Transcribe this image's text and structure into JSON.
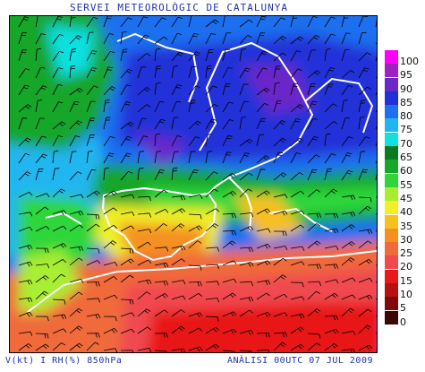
{
  "header": {
    "title": "SERVEI METEOROLÒGIC DE CATALUNYA"
  },
  "footer": {
    "left": "V(kt) I RH(%) 850hPa",
    "right": "ANÀLISI 00UTC 07 JUL 2009"
  },
  "legend": [
    {
      "label": "100",
      "color": "#ff00ff"
    },
    {
      "label": "95",
      "color": "#a020c0"
    },
    {
      "label": "90",
      "color": "#6a28c8"
    },
    {
      "label": "85",
      "color": "#2230d8"
    },
    {
      "label": "80",
      "color": "#1f6ff0"
    },
    {
      "label": "75",
      "color": "#20b6f0"
    },
    {
      "label": "70",
      "color": "#10e0e0"
    },
    {
      "label": "65",
      "color": "#0a7a20"
    },
    {
      "label": "60",
      "color": "#16a62a"
    },
    {
      "label": "55",
      "color": "#2ed63a"
    },
    {
      "label": "45",
      "color": "#a8ee30"
    },
    {
      "label": "40",
      "color": "#f0f028"
    },
    {
      "label": "35",
      "color": "#f5c020"
    },
    {
      "label": "30",
      "color": "#f59020"
    },
    {
      "label": "25",
      "color": "#f06a3a"
    },
    {
      "label": "20",
      "color": "#f04a50"
    },
    {
      "label": "15",
      "color": "#e81818"
    },
    {
      "label": "10",
      "color": "#b81010"
    },
    {
      "label": "5",
      "color": "#800a0a"
    },
    {
      "label": "0",
      "color": "#3a0606"
    }
  ]
}
